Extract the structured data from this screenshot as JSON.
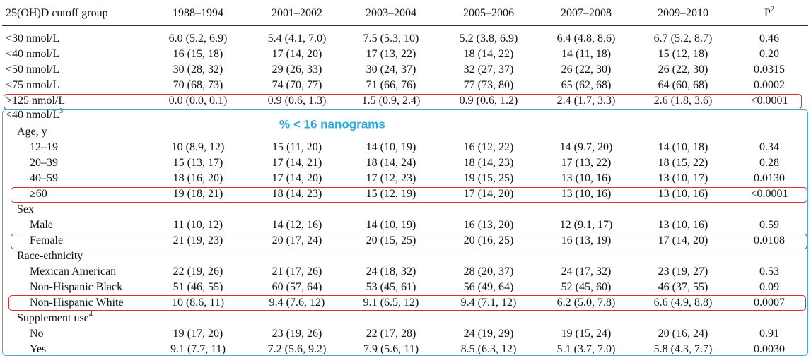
{
  "header": {
    "columns": [
      "25(OH)D cutoff group",
      "1988–1994",
      "2001–2002",
      "2003–2004",
      "2005–2006",
      "2007–2008",
      "2009–2010"
    ],
    "p": "P",
    "p_sup": "2"
  },
  "overall_rows": [
    {
      "label": "<30 nmol/L",
      "cells": [
        "6.0 (5.2, 6.9)",
        "5.4 (4.1, 7.0)",
        "7.5 (5.3, 10)",
        "5.2 (3.8, 6.9)",
        "6.4 (4.8, 8.6)",
        "6.7 (5.2, 8.7)"
      ],
      "p": "0.46"
    },
    {
      "label": "<40 nmol/L",
      "cells": [
        "16 (15, 18)",
        "17 (14, 20)",
        "17 (13, 22)",
        "18 (14, 22)",
        "14 (11, 18)",
        "15 (12, 18)"
      ],
      "p": "0.20"
    },
    {
      "label": "<50 nmol/L",
      "cells": [
        "30 (28, 32)",
        "29 (26, 33)",
        "30 (24, 37)",
        "32 (27, 37)",
        "26 (22, 30)",
        "26 (22, 30)"
      ],
      "p": "0.0315"
    },
    {
      "label": "<75 nmol/L",
      "cells": [
        "70 (68, 73)",
        "74 (70, 77)",
        "71 (66, 76)",
        "77 (73, 80)",
        "65 (62, 68)",
        "64 (60, 68)"
      ],
      "p": "0.0002"
    },
    {
      "label": ">125 nmol/L",
      "cells": [
        "0.0 (0.0, 0.1)",
        "0.9 (0.6, 1.3)",
        "1.5 (0.9, 2.4)",
        "0.9 (0.6, 1.2)",
        "2.4 (1.7, 3.3)",
        "2.6 (1.8, 3.6)"
      ],
      "p": "<0.0001"
    }
  ],
  "subgroup_section": {
    "label": "<40 nmol/L",
    "sup": "3",
    "annotation": "% < 16 nanograms",
    "groups": [
      {
        "label": "Age, y",
        "rows": [
          {
            "label": "12–19",
            "cells": [
              "10 (8.9, 12)",
              "15 (11, 20)",
              "14 (10, 19)",
              "16 (12, 22)",
              "14 (9.7, 20)",
              "14 (10, 18)"
            ],
            "p": "0.34"
          },
          {
            "label": "20–39",
            "cells": [
              "15 (13, 17)",
              "17 (14, 21)",
              "18 (14, 24)",
              "18 (14, 23)",
              "17 (13, 22)",
              "18 (15, 22)"
            ],
            "p": "0.28"
          },
          {
            "label": "40–59",
            "cells": [
              "18 (16, 20)",
              "17 (14, 20)",
              "17 (12, 23)",
              "19 (15, 25)",
              "13 (10, 16)",
              "13 (10, 17)"
            ],
            "p": "0.0130"
          },
          {
            "label": "≥60",
            "cells": [
              "19 (18, 21)",
              "18 (14, 23)",
              "15 (12, 19)",
              "17 (14, 20)",
              "13 (10, 16)",
              "13 (10, 16)"
            ],
            "p": "<0.0001"
          }
        ]
      },
      {
        "label": "Sex",
        "rows": [
          {
            "label": "Male",
            "cells": [
              "11 (10, 12)",
              "14 (12, 16)",
              "14 (10, 19)",
              "16 (13, 20)",
              "12 (9.1, 17)",
              "13 (10, 16)"
            ],
            "p": "0.59"
          },
          {
            "label": "Female",
            "cells": [
              "21 (19, 23)",
              "20 (17, 24)",
              "20 (15, 25)",
              "20 (16, 25)",
              "16 (13, 19)",
              "17 (14, 20)"
            ],
            "p": "0.0108"
          }
        ]
      },
      {
        "label": "Race-ethnicity",
        "rows": [
          {
            "label": "Mexican American",
            "cells": [
              "22 (19, 26)",
              "21 (17, 26)",
              "24 (18, 32)",
              "28 (20, 37)",
              "24 (17, 32)",
              "23 (19, 27)"
            ],
            "p": "0.53"
          },
          {
            "label": "Non-Hispanic Black",
            "cells": [
              "51 (46, 55)",
              "60 (57, 64)",
              "53 (45, 61)",
              "56 (49, 64)",
              "52 (45, 60)",
              "46 (37, 55)"
            ],
            "p": "0.09"
          },
          {
            "label": "Non-Hispanic White",
            "cells": [
              "10 (8.6, 11)",
              "9.4 (7.6, 12)",
              "9.1 (6.5, 12)",
              "9.4 (7.1, 12)",
              "6.2 (5.0, 7.8)",
              "6.6 (4.9, 8.8)"
            ],
            "p": "0.0007"
          }
        ]
      },
      {
        "label": "Supplement use",
        "sup": "4",
        "rows": [
          {
            "label": "No",
            "cells": [
              "19 (17, 20)",
              "23 (19, 26)",
              "22 (17, 28)",
              "24 (19, 29)",
              "19 (15, 24)",
              "20 (16, 24)"
            ],
            "p": "0.91"
          },
          {
            "label": "Yes",
            "cells": [
              "9.1 (7.7, 11)",
              "7.2 (5.6, 9.2)",
              "7.9 (5.6, 11)",
              "8.5 (6.3, 12)",
              "5.1 (3.7, 7.0)",
              "5.8 (4.3, 7.7)"
            ],
            "p": "0.0030"
          }
        ]
      }
    ]
  }
}
